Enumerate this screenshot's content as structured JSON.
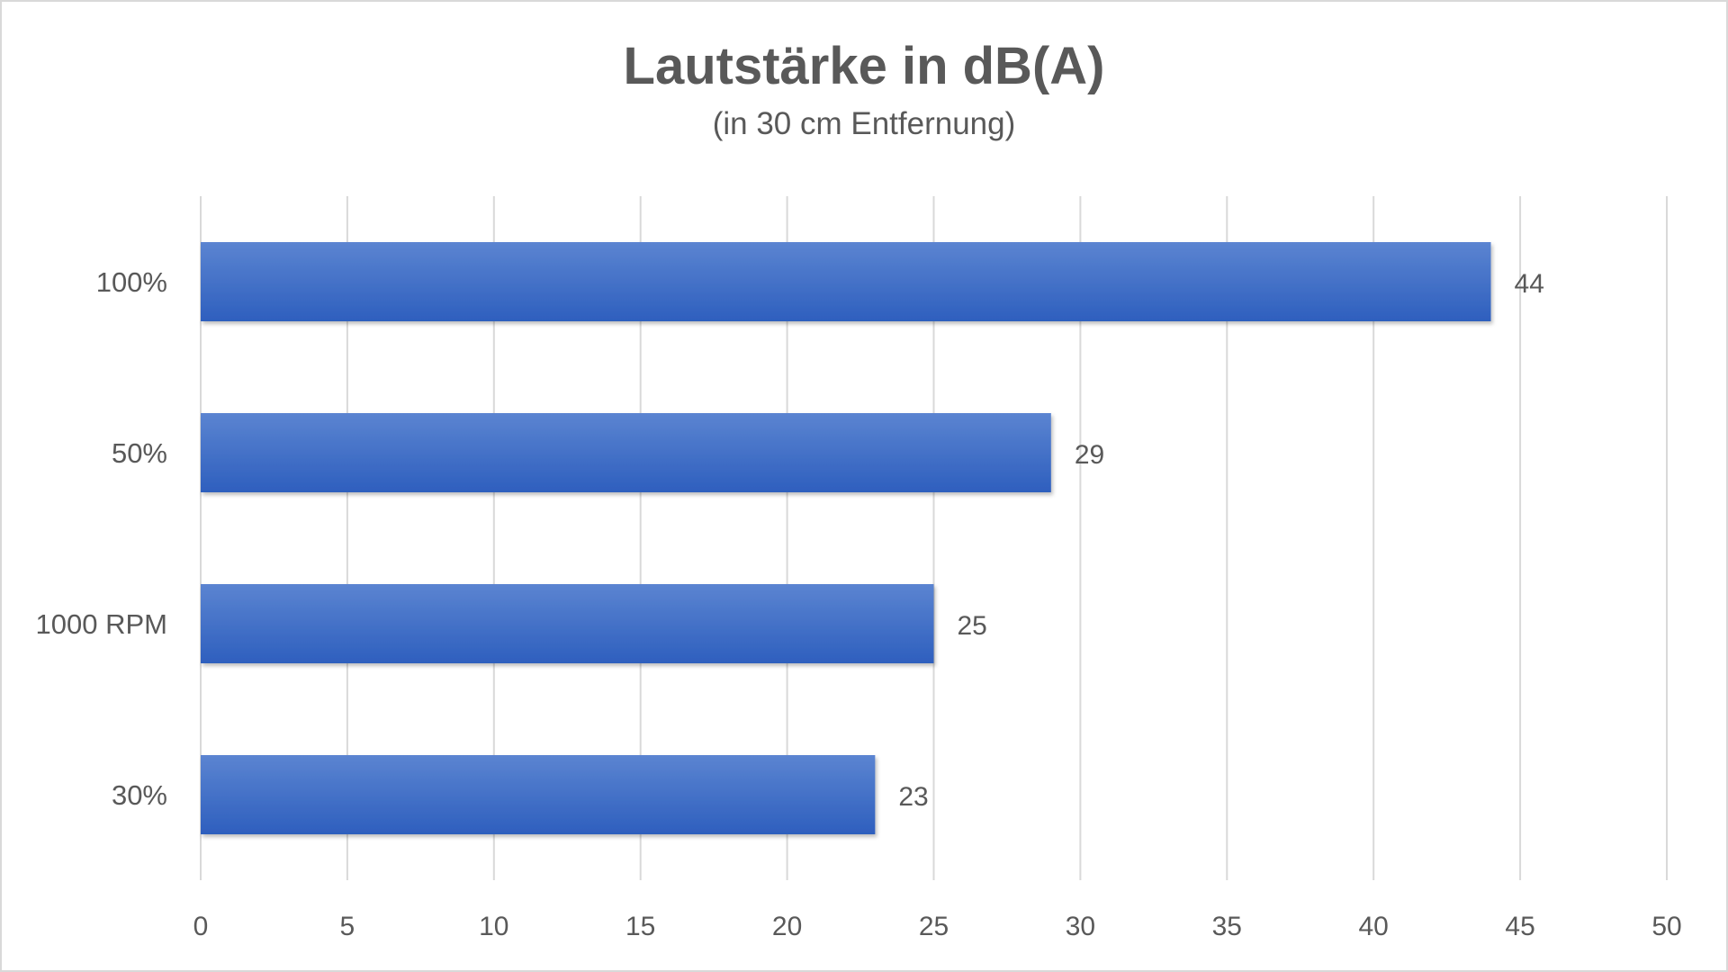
{
  "chart_data": {
    "type": "bar",
    "orientation": "horizontal",
    "title": "Lautstärke in dB(A)",
    "subtitle": "(in 30 cm Entfernung)",
    "categories": [
      "100%",
      "50%",
      "1000 RPM",
      "30%"
    ],
    "values": [
      44,
      29,
      25,
      23
    ],
    "xlim": [
      0,
      50
    ],
    "xticks": [
      0,
      5,
      10,
      15,
      20,
      25,
      30,
      35,
      40,
      45,
      50
    ],
    "grid": true,
    "legend": "none",
    "bar_color": "#4472C4"
  }
}
